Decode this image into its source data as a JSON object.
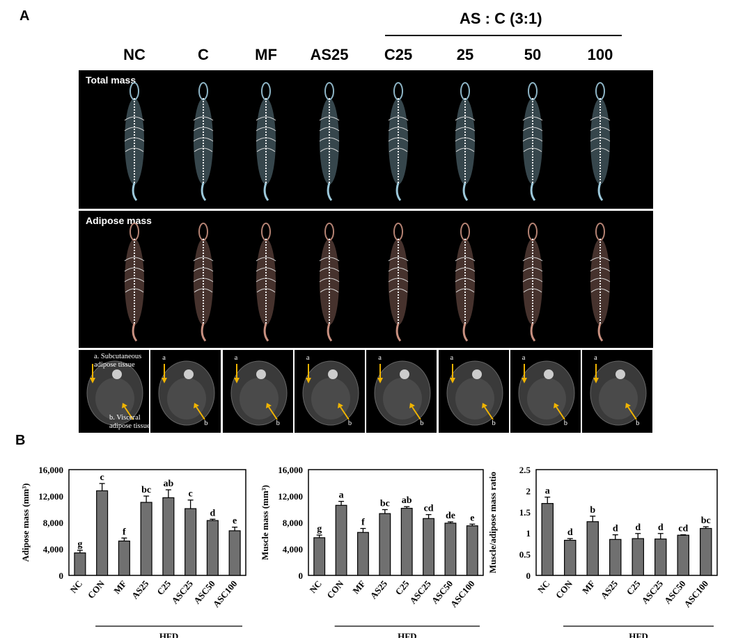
{
  "figure": {
    "panel_a_letter": "A",
    "panel_b_letter": "B",
    "group_header": "AS : C (3:1)",
    "column_labels": [
      "NC",
      "C",
      "MF",
      "AS25",
      "C25",
      "25",
      "50",
      "100"
    ],
    "rows": [
      {
        "title": "Total mass",
        "color": "#9cc8da"
      },
      {
        "title": "Adipose mass",
        "color": "#c89080"
      }
    ],
    "slice_annotations": {
      "subcutaneous": "a. Subcutaneous adipose tissue",
      "visceral": "b. Visceral adipose tissue",
      "a": "a",
      "b": "b"
    },
    "arrow_color": "#f0b400"
  },
  "chart_data": [
    {
      "type": "bar",
      "categories": [
        "NC",
        "CON",
        "MF",
        "AS25",
        "C25",
        "ASC25",
        "ASC50",
        "ASC100"
      ],
      "values": [
        3400,
        12800,
        5200,
        11050,
        11750,
        10100,
        8300,
        6750
      ],
      "errors": [
        400,
        1100,
        450,
        950,
        1200,
        1300,
        200,
        550
      ],
      "significance": [
        "g",
        "c",
        "f",
        "bc",
        "ab",
        "c",
        "d",
        "e"
      ],
      "ylabel": "Adipose mass (mm³)",
      "ylim": [
        0,
        16000
      ],
      "yticks": [
        "0",
        "4,000",
        "8,000",
        "12,000",
        "16,000"
      ],
      "group_label": "HFD",
      "bar_color": "#707070"
    },
    {
      "type": "bar",
      "categories": [
        "NC",
        "CON",
        "MF",
        "AS25",
        "C25",
        "ASC25",
        "ASC50",
        "ASC100"
      ],
      "values": [
        5700,
        10600,
        6500,
        9350,
        10150,
        8600,
        7900,
        7500
      ],
      "errors": [
        400,
        600,
        600,
        600,
        250,
        600,
        200,
        250
      ],
      "significance": [
        "g",
        "a",
        "f",
        "bc",
        "ab",
        "cd",
        "de",
        "e"
      ],
      "ylabel": "Muscle mass (mm³)",
      "ylim": [
        0,
        16000
      ],
      "yticks": [
        "0",
        "4,000",
        "8,000",
        "12,000",
        "16,000"
      ],
      "group_label": "HFD",
      "bar_color": "#707070"
    },
    {
      "type": "bar",
      "categories": [
        "NC",
        "CON",
        "MF",
        "AS25",
        "C25",
        "ASC25",
        "ASC50",
        "ASC100"
      ],
      "values": [
        1.7,
        0.83,
        1.27,
        0.85,
        0.87,
        0.86,
        0.95,
        1.11
      ],
      "errors": [
        0.15,
        0.04,
        0.13,
        0.11,
        0.12,
        0.13,
        0.01,
        0.04
      ],
      "significance": [
        "a",
        "d",
        "b",
        "d",
        "d",
        "d",
        "cd",
        "bc"
      ],
      "ylabel": "Muscle/adipose mass ratio",
      "ylim": [
        0,
        2.5
      ],
      "yticks": [
        "0",
        "0.5",
        "1",
        "1.5",
        "2",
        "2.5"
      ],
      "group_label": "HFD",
      "bar_color": "#707070"
    }
  ]
}
